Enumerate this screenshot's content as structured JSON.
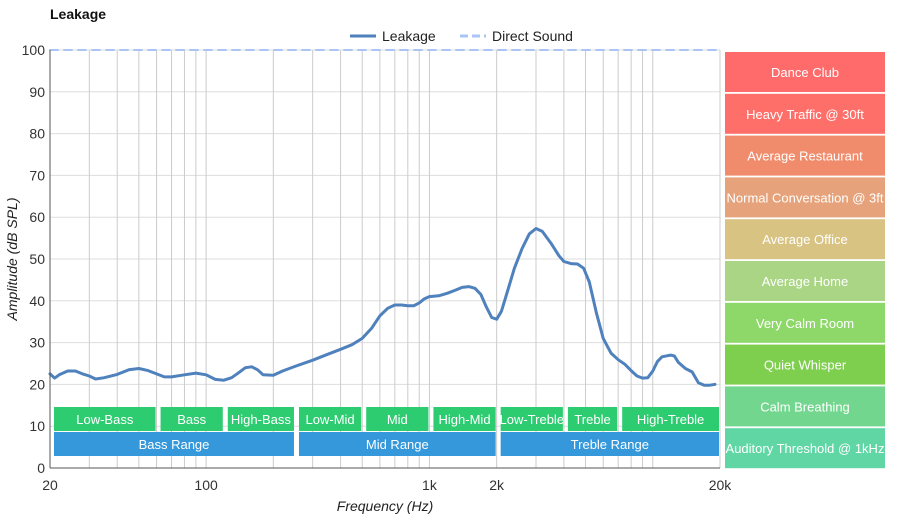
{
  "chart_data": {
    "type": "line",
    "title": "Leakage",
    "xlabel": "Frequency (Hz)",
    "ylabel": "Amplitude (dB SPL)",
    "x_scale": "log",
    "xlim": [
      20,
      20000
    ],
    "ylim": [
      0,
      100
    ],
    "x_tick_labels": [
      {
        "value": 20,
        "label": "20"
      },
      {
        "value": 100,
        "label": "100"
      },
      {
        "value": 1000,
        "label": "1k"
      },
      {
        "value": 2000,
        "label": "2k"
      },
      {
        "value": 20000,
        "label": "20k"
      }
    ],
    "y_ticks": [
      0,
      10,
      20,
      30,
      40,
      50,
      60,
      70,
      80,
      90,
      100
    ],
    "grid": true,
    "legend_position": "top-center",
    "series": [
      {
        "name": "Leakage",
        "color": "#4f81bd",
        "style": "solid",
        "points": [
          [
            20,
            22.5
          ],
          [
            21,
            21.5
          ],
          [
            22,
            22.3
          ],
          [
            24,
            23.2
          ],
          [
            26,
            23.2
          ],
          [
            28,
            22.5
          ],
          [
            30,
            22.0
          ],
          [
            32,
            21.3
          ],
          [
            35,
            21.6
          ],
          [
            40,
            22.4
          ],
          [
            45,
            23.5
          ],
          [
            50,
            23.8
          ],
          [
            55,
            23.3
          ],
          [
            60,
            22.5
          ],
          [
            65,
            21.8
          ],
          [
            70,
            21.8
          ],
          [
            80,
            22.3
          ],
          [
            90,
            22.7
          ],
          [
            100,
            22.3
          ],
          [
            110,
            21.2
          ],
          [
            120,
            21.0
          ],
          [
            130,
            21.6
          ],
          [
            140,
            22.8
          ],
          [
            150,
            24.0
          ],
          [
            160,
            24.2
          ],
          [
            170,
            23.5
          ],
          [
            180,
            22.3
          ],
          [
            200,
            22.2
          ],
          [
            220,
            23.2
          ],
          [
            250,
            24.3
          ],
          [
            300,
            25.8
          ],
          [
            350,
            27.2
          ],
          [
            400,
            28.4
          ],
          [
            450,
            29.5
          ],
          [
            500,
            31.0
          ],
          [
            550,
            33.4
          ],
          [
            600,
            36.4
          ],
          [
            650,
            38.2
          ],
          [
            700,
            39.0
          ],
          [
            750,
            39.0
          ],
          [
            800,
            38.8
          ],
          [
            850,
            38.8
          ],
          [
            900,
            39.5
          ],
          [
            950,
            40.5
          ],
          [
            1000,
            41.0
          ],
          [
            1100,
            41.2
          ],
          [
            1200,
            41.8
          ],
          [
            1300,
            42.5
          ],
          [
            1400,
            43.2
          ],
          [
            1500,
            43.4
          ],
          [
            1600,
            43.0
          ],
          [
            1700,
            41.5
          ],
          [
            1800,
            38.5
          ],
          [
            1900,
            36.0
          ],
          [
            2000,
            35.6
          ],
          [
            2100,
            37.5
          ],
          [
            2200,
            41.0
          ],
          [
            2400,
            47.8
          ],
          [
            2600,
            52.5
          ],
          [
            2800,
            56.0
          ],
          [
            3000,
            57.3
          ],
          [
            3200,
            56.6
          ],
          [
            3500,
            53.8
          ],
          [
            3800,
            50.8
          ],
          [
            4000,
            49.4
          ],
          [
            4300,
            48.9
          ],
          [
            4600,
            48.8
          ],
          [
            4900,
            47.8
          ],
          [
            5200,
            44.5
          ],
          [
            5600,
            37.0
          ],
          [
            6000,
            31.0
          ],
          [
            6500,
            27.5
          ],
          [
            7000,
            25.9
          ],
          [
            7500,
            24.8
          ],
          [
            8000,
            23.3
          ],
          [
            8500,
            22.0
          ],
          [
            9000,
            21.5
          ],
          [
            9500,
            21.6
          ],
          [
            10000,
            23.2
          ],
          [
            10500,
            25.5
          ],
          [
            11000,
            26.6
          ],
          [
            12000,
            27.0
          ],
          [
            12500,
            26.8
          ],
          [
            13000,
            25.3
          ],
          [
            14000,
            23.8
          ],
          [
            15000,
            23.0
          ],
          [
            16000,
            20.4
          ],
          [
            17000,
            19.8
          ],
          [
            18000,
            19.8
          ],
          [
            19000,
            20.0
          ]
        ]
      },
      {
        "name": "Direct Sound",
        "color": "#a9c4f5",
        "style": "dashed",
        "points": [
          [
            20,
            100
          ],
          [
            20000,
            100
          ]
        ]
      }
    ],
    "frequency_bands": [
      {
        "label": "Low-Bass",
        "from": 20,
        "to": 60,
        "row": 1
      },
      {
        "label": "Bass",
        "from": 60,
        "to": 120,
        "row": 1
      },
      {
        "label": "High-Bass",
        "from": 120,
        "to": 250,
        "row": 1
      },
      {
        "label": "Low-Mid",
        "from": 250,
        "to": 500,
        "row": 1
      },
      {
        "label": "Mid",
        "from": 500,
        "to": 1000,
        "row": 1
      },
      {
        "label": "High-Mid",
        "from": 1000,
        "to": 2000,
        "row": 1
      },
      {
        "label": "Low-Treble",
        "from": 2000,
        "to": 4000,
        "row": 1
      },
      {
        "label": "Treble",
        "from": 4000,
        "to": 7000,
        "row": 1
      },
      {
        "label": "High-Treble",
        "from": 7000,
        "to": 20000,
        "row": 1
      },
      {
        "label": "Bass Range",
        "from": 20,
        "to": 250,
        "row": 2
      },
      {
        "label": "Mid Range",
        "from": 250,
        "to": 2000,
        "row": 2
      },
      {
        "label": "Treble Range",
        "from": 2000,
        "to": 20000,
        "row": 2
      }
    ],
    "band_colors": {
      "row1": "#2ecc71",
      "row2": "#3498db"
    },
    "reference_levels": [
      {
        "label": "Dance Club",
        "color": "#ff6b6b"
      },
      {
        "label": "Heavy Traffic @ 30ft",
        "color": "#ff6f6a"
      },
      {
        "label": "Average Restaurant",
        "color": "#f08c6c"
      },
      {
        "label": "Normal Conversation @ 3ft",
        "color": "#e6a27a"
      },
      {
        "label": "Average Office",
        "color": "#d8c382"
      },
      {
        "label": "Average Home",
        "color": "#aad585"
      },
      {
        "label": "Very Calm Room",
        "color": "#8ed86a"
      },
      {
        "label": "Quiet Whisper",
        "color": "#7ecf4e"
      },
      {
        "label": "Calm Breathing",
        "color": "#73d68e"
      },
      {
        "label": "Auditory Threshold @ 1kHz",
        "color": "#60d6a4"
      }
    ]
  }
}
